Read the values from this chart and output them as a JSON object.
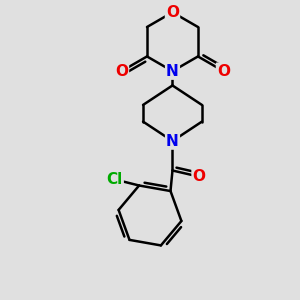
{
  "bg_color": "#e0e0e0",
  "atom_colors": {
    "C": "#000000",
    "N": "#0000ee",
    "O": "#ee0000",
    "Cl": "#00aa00"
  },
  "bond_color": "#000000",
  "bond_width": 1.8,
  "font_size_atom": 11,
  "figsize": [
    3.0,
    3.0
  ],
  "dpi": 100,
  "xlim": [
    -2.8,
    2.8
  ],
  "ylim": [
    -4.2,
    3.0
  ]
}
